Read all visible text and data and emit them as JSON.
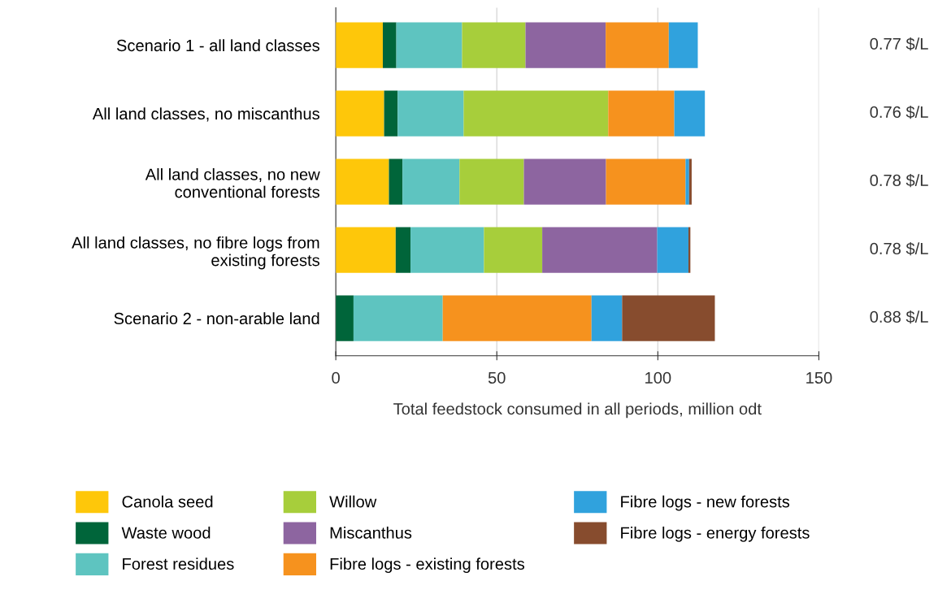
{
  "chart_data": {
    "type": "bar",
    "orientation": "horizontal",
    "stacked": true,
    "categories": [
      "Scenario 1 - all land classes",
      "All land classes, no miscanthus",
      "All land classes, no new\nconventional forests",
      "All land classes, no fibre logs from\nexisting forests",
      "Scenario 2 - non-arable land"
    ],
    "series": [
      {
        "name": "Canola seed",
        "color": "#fec70a",
        "values": [
          14.6,
          15.0,
          16.5,
          18.6,
          0
        ]
      },
      {
        "name": "Waste wood",
        "color": "#00653a",
        "values": [
          4.2,
          4.2,
          4.2,
          4.6,
          5.5
        ]
      },
      {
        "name": "Forest residues",
        "color": "#5ec4c0",
        "values": [
          20.4,
          20.5,
          17.7,
          22.8,
          27.7
        ]
      },
      {
        "name": "Willow",
        "color": "#a7ce3b",
        "values": [
          19.7,
          44.9,
          20.0,
          18.1,
          0
        ]
      },
      {
        "name": "Miscanthus",
        "color": "#8d65a0",
        "values": [
          24.9,
          0,
          25.5,
          35.7,
          0
        ]
      },
      {
        "name": "Fibre logs - existing forests",
        "color": "#f6921e",
        "values": [
          19.6,
          20.5,
          24.7,
          0,
          46.2
        ]
      },
      {
        "name": "Fibre logs - new forests",
        "color": "#30a2dd",
        "values": [
          9.0,
          9.5,
          1.1,
          9.7,
          9.5
        ]
      },
      {
        "name": "Fibre logs - energy forests",
        "color": "#874c2e",
        "values": [
          0,
          0,
          0.8,
          0.6,
          28.8
        ]
      }
    ],
    "xlabel": "Total feedstock consumed in all periods, million odt",
    "xlim": [
      0,
      150
    ],
    "xticks": [
      0,
      50,
      100,
      150
    ],
    "grid": "x",
    "legend": "bottom",
    "annotations": [
      "0.77 $/L",
      "0.76 $/L",
      "0.78 $/L",
      "0.78 $/L",
      "0.88 $/L"
    ]
  }
}
